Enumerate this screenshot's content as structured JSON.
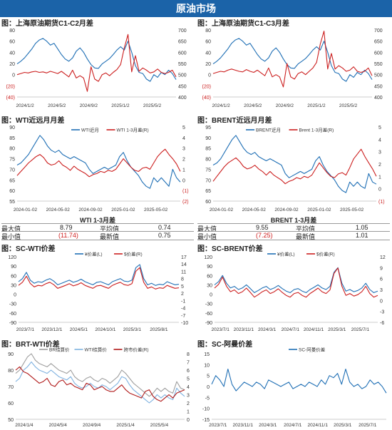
{
  "header": {
    "title": "原油市场"
  },
  "colors": {
    "blue": "#1f6fb5",
    "red": "#cc1f1f",
    "lightblue": "#7fb2e0",
    "gray": "#9e9e9e",
    "darkred": "#b01818",
    "banner": "#1b63a8"
  },
  "panels": {
    "p1": {
      "title": "图：上海原油期货C1-C2月差"
    },
    "p2": {
      "title": "图：上海原油期货C1-C3月差"
    },
    "p3": {
      "title": "图：WTI近远月月差"
    },
    "p4": {
      "title": "图：BRENT近远月月差"
    },
    "p5": {
      "title": "图：SC-WTI价差"
    },
    "p6": {
      "title": "图：SC-BRENT价差"
    },
    "p7": {
      "title": "图：BRT-WTI价差"
    },
    "p8": {
      "title": "图：SC-阿曼价差"
    }
  },
  "stats": {
    "wti": {
      "title": "WTI 1-3月差",
      "max_label": "最大值",
      "max": "8.79",
      "avg_label": "平均值",
      "avg": "0.74",
      "min_label": "最小值",
      "min": "(11.74)",
      "latest_label": "最新值",
      "latest": "0.75"
    },
    "brent": {
      "title": "BRENT 1-3月差",
      "max_label": "最大值",
      "max": "9.55",
      "avg_label": "平均值",
      "avg": "1.05",
      "min_label": "最小值",
      "min": "(7.25)",
      "latest_label": "最新值",
      "latest": "1.01"
    }
  },
  "chart_data": [
    {
      "id": "p1",
      "type": "line",
      "x_ticks": [
        "2024/1/2",
        "2024/5/2",
        "2024/9/2",
        "2025/1/2",
        "2025/5/2"
      ],
      "y_left_ticks": [
        "80",
        "60",
        "40",
        "20",
        "0",
        "(20)",
        "(40)"
      ],
      "y_left_lim": [
        -40,
        80
      ],
      "y_right_ticks": [
        "700",
        "650",
        "600",
        "550",
        "500",
        "450",
        "400"
      ],
      "y_right_lim": [
        400,
        700
      ],
      "series": [
        {
          "axis": "right",
          "color": "#1f6fb5",
          "values": [
            548,
            560,
            575,
            595,
            615,
            640,
            655,
            662,
            650,
            632,
            640,
            615,
            590,
            570,
            560,
            575,
            605,
            620,
            600,
            570,
            545,
            530,
            528,
            548,
            560,
            572,
            590,
            610,
            625,
            610,
            650,
            600,
            540,
            510,
            505,
            480,
            470,
            500,
            488,
            510,
            500,
            520,
            505,
            478
          ]
        },
        {
          "axis": "left",
          "color": "#cc1f1f",
          "values": [
            0,
            2,
            4,
            3,
            5,
            6,
            4,
            5,
            3,
            6,
            4,
            2,
            6,
            1,
            -4,
            8,
            -6,
            -2,
            -6,
            -30,
            14,
            -8,
            -12,
            0,
            3,
            -2,
            4,
            9,
            18,
            48,
            72,
            5,
            34,
            6,
            12,
            8,
            3,
            5,
            10,
            4,
            2,
            4,
            8,
            -4
          ]
        }
      ]
    },
    {
      "id": "p2",
      "type": "line",
      "x_ticks": [
        "2024/1/2",
        "2024/5/2",
        "2024/9/2",
        "2025/1/2",
        "2025/5/2"
      ],
      "y_left_ticks": [
        "80",
        "60",
        "40",
        "20",
        "0",
        "(20)",
        "(40)"
      ],
      "y_left_lim": [
        -40,
        80
      ],
      "y_right_ticks": [
        "700",
        "650",
        "600",
        "550",
        "500",
        "450",
        "400"
      ],
      "y_right_lim": [
        400,
        700
      ],
      "series": [
        {
          "axis": "right",
          "color": "#1f6fb5",
          "values": [
            548,
            560,
            575,
            595,
            615,
            640,
            655,
            662,
            650,
            632,
            640,
            615,
            590,
            570,
            560,
            575,
            605,
            620,
            600,
            570,
            545,
            530,
            528,
            548,
            560,
            572,
            590,
            610,
            625,
            610,
            650,
            600,
            540,
            510,
            505,
            480,
            470,
            500,
            488,
            510,
            500,
            520,
            505,
            478
          ]
        },
        {
          "axis": "left",
          "color": "#cc1f1f",
          "values": [
            2,
            4,
            6,
            5,
            8,
            10,
            8,
            6,
            5,
            9,
            6,
            4,
            8,
            3,
            -2,
            12,
            -4,
            0,
            -4,
            -22,
            20,
            -4,
            -8,
            2,
            5,
            0,
            6,
            12,
            22,
            55,
            78,
            10,
            38,
            10,
            16,
            12,
            6,
            8,
            14,
            6,
            4,
            6,
            12,
            -2
          ]
        }
      ]
    },
    {
      "id": "p3",
      "type": "line",
      "x_ticks": [
        "2024-01-02",
        "2024-05-02",
        "2024-09-02",
        "2025-01-02",
        "2025-05-02"
      ],
      "y_left_ticks": [
        "90",
        "85",
        "80",
        "75",
        "70",
        "65",
        "60",
        "55"
      ],
      "y_left_lim": [
        55,
        90
      ],
      "y_right_ticks": [
        "5",
        "4",
        "3",
        "2",
        "1",
        "0",
        "(1)",
        "(2)"
      ],
      "y_right_lim": [
        -2,
        5
      ],
      "legend": [
        "WTI近月",
        "WTI 1-3月差(R)"
      ],
      "series": [
        {
          "axis": "left",
          "color": "#1f6fb5",
          "name": "WTI近月",
          "values": [
            72,
            73,
            75,
            77,
            80,
            83,
            86,
            84,
            81,
            79,
            78,
            79,
            77,
            76,
            75,
            76,
            75,
            74,
            73,
            70,
            68,
            69,
            70,
            71,
            70,
            71,
            72,
            76,
            78,
            74,
            71,
            69,
            67,
            64,
            62,
            61,
            66,
            64,
            66,
            64,
            62,
            70,
            66,
            64
          ]
        },
        {
          "axis": "right",
          "color": "#cc1f1f",
          "name": "WTI 1-3月差(R)",
          "values": [
            0.4,
            0.8,
            1.2,
            1.6,
            1.9,
            2.2,
            2.4,
            2.1,
            1.6,
            1.4,
            1.5,
            1.8,
            1.4,
            1.2,
            0.9,
            1.3,
            1.0,
            0.8,
            0.6,
            0.3,
            0.5,
            0.6,
            0.8,
            0.7,
            0.9,
            0.8,
            1.0,
            1.5,
            2.0,
            1.6,
            1.2,
            0.9,
            0.8,
            1.1,
            1.2,
            1.0,
            1.6,
            2.2,
            2.6,
            2.9,
            2.4,
            2.0,
            1.5,
            0.8
          ]
        }
      ]
    },
    {
      "id": "p4",
      "type": "line",
      "x_ticks": [
        "2024-01-02",
        "2024-05-02",
        "2024-09-02",
        "2025-01-02",
        "2025-05-02"
      ],
      "y_left_ticks": [
        "95",
        "90",
        "85",
        "80",
        "75",
        "70",
        "65",
        "60"
      ],
      "y_left_lim": [
        60,
        95
      ],
      "y_right_ticks": [
        "5",
        "4",
        "3",
        "2",
        "1",
        "0",
        "(1)"
      ],
      "y_right_lim": [
        -1,
        5
      ],
      "legend": [
        "BRENT近月",
        "Brent 1-3月差(R)"
      ],
      "series": [
        {
          "axis": "left",
          "color": "#1f6fb5",
          "name": "BRENT近月",
          "values": [
            77,
            78,
            80,
            83,
            86,
            89,
            91,
            88,
            85,
            83,
            82,
            83,
            81,
            80,
            79,
            80,
            79,
            78,
            77,
            73,
            71,
            72,
            73,
            74,
            73,
            74,
            75,
            79,
            81,
            77,
            74,
            72,
            70,
            67,
            65,
            64,
            69,
            67,
            69,
            67,
            66,
            73,
            69,
            68
          ]
        },
        {
          "axis": "right",
          "color": "#cc1f1f",
          "name": "Brent 1-3月差(R)",
          "values": [
            0.6,
            1.0,
            1.4,
            1.8,
            2.1,
            2.3,
            2.5,
            2.2,
            1.8,
            1.6,
            1.7,
            1.9,
            1.6,
            1.4,
            1.1,
            1.4,
            1.1,
            0.9,
            0.7,
            0.4,
            0.6,
            0.7,
            0.9,
            0.8,
            1.0,
            0.9,
            1.1,
            1.6,
            2.1,
            1.7,
            1.3,
            1.0,
            0.9,
            1.2,
            1.3,
            1.1,
            1.7,
            2.4,
            2.8,
            3.2,
            2.6,
            2.1,
            1.6,
            1.0
          ]
        }
      ]
    },
    {
      "id": "p5",
      "type": "line",
      "x_ticks": [
        "2023/7/1",
        "2023/12/1",
        "2024/5/1",
        "2024/10/1",
        "2025/3/1",
        "2025/8/1"
      ],
      "y_left_ticks": [
        "120",
        "90",
        "60",
        "30",
        "0",
        "-30",
        "-60",
        "-90"
      ],
      "y_left_lim": [
        -90,
        120
      ],
      "y_right_ticks": [
        "17",
        "14",
        "11",
        "8",
        "5",
        "2",
        "-1",
        "-4",
        "-7",
        "-10"
      ],
      "y_right_lim": [
        -10,
        17
      ],
      "legend": [
        "¥价差(L)",
        "$价差(R)"
      ],
      "series": [
        {
          "axis": "left",
          "color": "#1f6fb5",
          "name": "¥价差(L)",
          "values": [
            40,
            50,
            70,
            45,
            35,
            40,
            38,
            45,
            50,
            42,
            30,
            35,
            40,
            45,
            38,
            42,
            48,
            40,
            35,
            30,
            38,
            40,
            35,
            30,
            40,
            45,
            50,
            42,
            40,
            45,
            85,
            95,
            50,
            30,
            35,
            28,
            32,
            30,
            40,
            35,
            30,
            32
          ]
        },
        {
          "axis": "right",
          "color": "#cc1f1f",
          "name": "$价差(R)",
          "values": [
            5.2,
            6.5,
            9.0,
            6.0,
            4.6,
            5.2,
            5.0,
            5.9,
            6.5,
            5.5,
            4.0,
            4.6,
            5.2,
            5.9,
            5.0,
            5.5,
            6.3,
            5.2,
            4.6,
            4.0,
            5.0,
            5.2,
            4.6,
            4.0,
            5.2,
            5.9,
            6.5,
            5.5,
            5.2,
            5.9,
            11.0,
            12.5,
            6.5,
            4.0,
            4.6,
            3.7,
            4.2,
            4.0,
            5.2,
            4.6,
            4.0,
            4.2
          ]
        }
      ]
    },
    {
      "id": "p6",
      "type": "line",
      "x_ticks": [
        "2023/7/1",
        "2023/11/1",
        "2024/3/1",
        "2024/7/1",
        "2024/11/1",
        "2025/3/1",
        "2025/7/1"
      ],
      "y_left_ticks": [
        "120",
        "90",
        "60",
        "30",
        "0",
        "-30",
        "-60",
        "-90"
      ],
      "y_left_lim": [
        -90,
        120
      ],
      "y_right_ticks": [
        "12",
        "9",
        "6",
        "3",
        "0",
        "-3",
        "-6"
      ],
      "y_right_lim": [
        -6,
        12
      ],
      "legend": [
        "¥价差(L)",
        "$价差(R)"
      ],
      "series": [
        {
          "axis": "left",
          "color": "#1f6fb5",
          "name": "¥价差(L)",
          "values": [
            30,
            40,
            60,
            35,
            20,
            25,
            15,
            20,
            30,
            18,
            5,
            12,
            20,
            25,
            15,
            20,
            28,
            18,
            10,
            5,
            15,
            18,
            10,
            5,
            15,
            22,
            30,
            20,
            15,
            25,
            70,
            85,
            35,
            10,
            15,
            8,
            12,
            20,
            35,
            15,
            5,
            10
          ]
        },
        {
          "axis": "right",
          "color": "#cc1f1f",
          "name": "$价差(R)",
          "values": [
            3.4,
            4.4,
            6.4,
            3.9,
            2.4,
            2.9,
            1.9,
            2.4,
            3.4,
            2.2,
            0.9,
            1.6,
            2.4,
            2.9,
            1.9,
            2.4,
            3.2,
            2.2,
            1.4,
            0.9,
            1.9,
            2.2,
            1.4,
            0.9,
            1.9,
            2.6,
            3.4,
            2.4,
            1.9,
            2.9,
            7.4,
            8.9,
            3.9,
            1.4,
            1.9,
            1.2,
            1.6,
            2.4,
            3.9,
            1.9,
            0.9,
            1.4
          ]
        }
      ]
    },
    {
      "id": "p7",
      "type": "line",
      "x_ticks": [
        "2024/1/4",
        "2024/5/4",
        "2024/9/4",
        "2025/1/4",
        "2025/5/4"
      ],
      "y_left_ticks": [
        "90",
        "80",
        "70",
        "60",
        "50"
      ],
      "y_left_lim": [
        50,
        90
      ],
      "y_right_ticks": [
        "8",
        "7",
        "6",
        "5",
        "4",
        "3",
        "2",
        "1",
        "0"
      ],
      "y_right_lim": [
        0,
        8
      ],
      "legend": [
        "BR结算价",
        "WTI结算价",
        "跨市价差(R)"
      ],
      "series": [
        {
          "axis": "left",
          "color": "#9e9e9e",
          "name": "BR结算价",
          "values": [
            78,
            80,
            84,
            88,
            90,
            86,
            84,
            83,
            82,
            84,
            82,
            80,
            79,
            78,
            80,
            76,
            74,
            73,
            75,
            76,
            74,
            73,
            75,
            74,
            72,
            74,
            76,
            80,
            78,
            75,
            72,
            70,
            68,
            66,
            64,
            66,
            69,
            67,
            69,
            67,
            66,
            73,
            69,
            68
          ]
        },
        {
          "axis": "left",
          "color": "#7fb2e0",
          "name": "WTI结算价",
          "values": [
            73,
            75,
            80,
            82,
            85,
            82,
            80,
            79,
            78,
            80,
            78,
            76,
            75,
            74,
            76,
            72,
            70,
            69,
            70,
            72,
            70,
            69,
            71,
            70,
            68,
            70,
            72,
            76,
            75,
            71,
            68,
            66,
            64,
            62,
            60,
            62,
            65,
            63,
            65,
            63,
            62,
            69,
            66,
            64
          ]
        },
        {
          "axis": "right",
          "color": "#b01818",
          "name": "跨市价差(R)",
          "values": [
            6.0,
            6.4,
            5.8,
            5.6,
            5.2,
            4.8,
            4.4,
            4.6,
            5.0,
            4.2,
            4.0,
            4.6,
            4.8,
            4.2,
            4.4,
            4.0,
            3.8,
            3.6,
            4.4,
            4.2,
            3.6,
            3.8,
            4.0,
            3.6,
            3.4,
            3.4,
            3.8,
            4.2,
            3.6,
            3.2,
            3.0,
            2.8,
            2.6,
            3.4,
            3.6,
            2.8,
            2.4,
            2.2,
            2.6,
            3.0,
            2.6,
            3.2,
            3.4,
            3.6
          ]
        }
      ]
    },
    {
      "id": "p8",
      "type": "line",
      "x_ticks": [
        "2023/7/1",
        "2023/11/1",
        "2024/3/1",
        "2024/7/1",
        "2024/11/1",
        "2025/3/1",
        "2025/7/1"
      ],
      "y_left_ticks": [
        "15",
        "10",
        "5",
        "0",
        "-5",
        "-10",
        "-15"
      ],
      "y_left_lim": [
        -15,
        15
      ],
      "legend": [
        "SC-阿曼价差"
      ],
      "series": [
        {
          "axis": "left",
          "color": "#1f6fb5",
          "name": "SC-阿曼价差",
          "values": [
            1,
            5,
            3,
            0,
            8,
            1,
            -2,
            0,
            2,
            1,
            0,
            2,
            1,
            -1,
            3,
            2,
            1,
            0,
            1,
            2,
            -1,
            0,
            1,
            0,
            2,
            1,
            0,
            3,
            1,
            5,
            4,
            6,
            1,
            8,
            2,
            0,
            1,
            -1,
            0,
            3,
            1,
            2,
            0,
            -3
          ]
        }
      ]
    }
  ]
}
